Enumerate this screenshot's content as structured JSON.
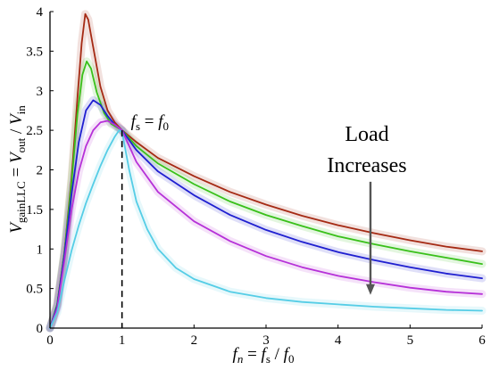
{
  "chart_data": {
    "type": "line",
    "xlabel": {
      "f": "f",
      "n": "n",
      "eq": " = ",
      "fs": "f",
      "s": "s",
      "slash": " / ",
      "f0": "f",
      "zero": "0"
    },
    "ylabel": {
      "v": "V",
      "gain": "gainLLC",
      "eq": " = ",
      "vout": "V",
      "out": "out",
      "slash": " / ",
      "vin": "V",
      "in": "in"
    },
    "xlim": [
      0,
      6
    ],
    "ylim": [
      0,
      4
    ],
    "x_ticks": [
      "0",
      "1",
      "2",
      "3",
      "4",
      "5",
      "6"
    ],
    "y_ticks": [
      "0",
      "0.5",
      "1",
      "1.5",
      "2",
      "2.5",
      "3",
      "3.5",
      "4"
    ],
    "grid": false,
    "resonance": {
      "x": 1,
      "y_top": 2.5,
      "label_f": "f",
      "label_s": "s",
      "label_eq": " = ",
      "label_f0": "f",
      "label_0": "0"
    },
    "annotation": {
      "line1": "Load",
      "line2": "Increases",
      "arrow_x": 4.45,
      "arrow_from": 1.85,
      "arrow_to": 0.42,
      "color": "#555555"
    },
    "series": [
      {
        "color": "#a52a14",
        "points": [
          [
            0,
            0
          ],
          [
            0.1,
            0.3
          ],
          [
            0.2,
            0.95
          ],
          [
            0.3,
            1.9
          ],
          [
            0.38,
            2.9
          ],
          [
            0.44,
            3.6
          ],
          [
            0.49,
            3.97
          ],
          [
            0.53,
            3.9
          ],
          [
            0.6,
            3.55
          ],
          [
            0.7,
            3.05
          ],
          [
            0.8,
            2.75
          ],
          [
            0.9,
            2.6
          ],
          [
            1,
            2.5
          ],
          [
            1.2,
            2.35
          ],
          [
            1.5,
            2.15
          ],
          [
            2,
            1.92
          ],
          [
            2.5,
            1.72
          ],
          [
            3,
            1.56
          ],
          [
            3.5,
            1.42
          ],
          [
            4,
            1.3
          ],
          [
            4.5,
            1.2
          ],
          [
            5,
            1.11
          ],
          [
            5.5,
            1.03
          ],
          [
            6,
            0.97
          ]
        ]
      },
      {
        "color": "#39c01a",
        "points": [
          [
            0,
            0
          ],
          [
            0.1,
            0.3
          ],
          [
            0.2,
            0.95
          ],
          [
            0.3,
            1.85
          ],
          [
            0.38,
            2.7
          ],
          [
            0.45,
            3.2
          ],
          [
            0.51,
            3.37
          ],
          [
            0.57,
            3.28
          ],
          [
            0.65,
            2.98
          ],
          [
            0.75,
            2.72
          ],
          [
            0.85,
            2.58
          ],
          [
            1,
            2.5
          ],
          [
            1.2,
            2.3
          ],
          [
            1.5,
            2.08
          ],
          [
            2,
            1.82
          ],
          [
            2.5,
            1.6
          ],
          [
            3,
            1.43
          ],
          [
            3.5,
            1.29
          ],
          [
            4,
            1.16
          ],
          [
            4.5,
            1.06
          ],
          [
            5,
            0.97
          ],
          [
            5.5,
            0.89
          ],
          [
            6,
            0.81
          ]
        ]
      },
      {
        "color": "#1f1fd0",
        "points": [
          [
            0,
            0
          ],
          [
            0.1,
            0.28
          ],
          [
            0.2,
            0.92
          ],
          [
            0.3,
            1.7
          ],
          [
            0.4,
            2.35
          ],
          [
            0.5,
            2.75
          ],
          [
            0.6,
            2.88
          ],
          [
            0.7,
            2.82
          ],
          [
            0.8,
            2.68
          ],
          [
            0.9,
            2.57
          ],
          [
            1,
            2.5
          ],
          [
            1.2,
            2.25
          ],
          [
            1.5,
            1.98
          ],
          [
            2,
            1.68
          ],
          [
            2.5,
            1.43
          ],
          [
            3,
            1.24
          ],
          [
            3.5,
            1.09
          ],
          [
            4,
            0.96
          ],
          [
            4.5,
            0.86
          ],
          [
            5,
            0.77
          ],
          [
            5.5,
            0.69
          ],
          [
            6,
            0.63
          ]
        ]
      },
      {
        "color": "#b631d8",
        "points": [
          [
            0,
            0
          ],
          [
            0.1,
            0.25
          ],
          [
            0.2,
            0.85
          ],
          [
            0.3,
            1.5
          ],
          [
            0.4,
            1.98
          ],
          [
            0.5,
            2.3
          ],
          [
            0.6,
            2.5
          ],
          [
            0.7,
            2.6
          ],
          [
            0.8,
            2.62
          ],
          [
            0.9,
            2.57
          ],
          [
            1,
            2.5
          ],
          [
            1.2,
            2.1
          ],
          [
            1.5,
            1.72
          ],
          [
            2,
            1.35
          ],
          [
            2.5,
            1.1
          ],
          [
            3,
            0.91
          ],
          [
            3.5,
            0.77
          ],
          [
            4,
            0.66
          ],
          [
            4.5,
            0.58
          ],
          [
            5,
            0.51
          ],
          [
            5.5,
            0.46
          ],
          [
            6,
            0.43
          ]
        ]
      },
      {
        "color": "#55cde6",
        "points": [
          [
            0,
            0
          ],
          [
            0.1,
            0.2
          ],
          [
            0.2,
            0.6
          ],
          [
            0.3,
            0.98
          ],
          [
            0.4,
            1.3
          ],
          [
            0.5,
            1.58
          ],
          [
            0.6,
            1.82
          ],
          [
            0.7,
            2.05
          ],
          [
            0.8,
            2.25
          ],
          [
            0.9,
            2.42
          ],
          [
            0.96,
            2.5
          ],
          [
            1,
            2.48
          ],
          [
            1.1,
            2.0
          ],
          [
            1.2,
            1.6
          ],
          [
            1.35,
            1.25
          ],
          [
            1.5,
            1.0
          ],
          [
            1.75,
            0.76
          ],
          [
            2,
            0.62
          ],
          [
            2.5,
            0.46
          ],
          [
            3,
            0.38
          ],
          [
            3.5,
            0.33
          ],
          [
            4,
            0.3
          ],
          [
            4.5,
            0.27
          ],
          [
            5,
            0.25
          ],
          [
            5.5,
            0.23
          ],
          [
            6,
            0.22
          ]
        ]
      }
    ]
  }
}
